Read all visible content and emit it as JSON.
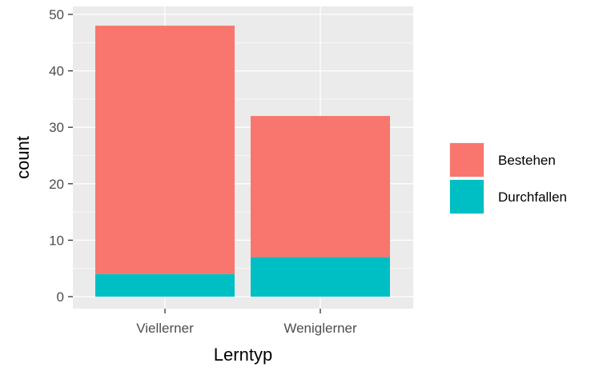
{
  "chart_data": {
    "type": "bar",
    "stacked": true,
    "categories": [
      "Viellerner",
      "Weniglerner"
    ],
    "series": [
      {
        "name": "Bestehen",
        "values": [
          44,
          25
        ],
        "color": "#F8766D"
      },
      {
        "name": "Durchfallen",
        "values": [
          4,
          7
        ],
        "color": "#00BFC4"
      }
    ],
    "xlabel": "Lerntyp",
    "ylabel": "count",
    "ylim": [
      0,
      50
    ],
    "yticks": [
      0,
      10,
      20,
      30,
      40,
      50
    ],
    "grid": true,
    "panel_background": "#EBEBEB",
    "legend_position": "right"
  }
}
